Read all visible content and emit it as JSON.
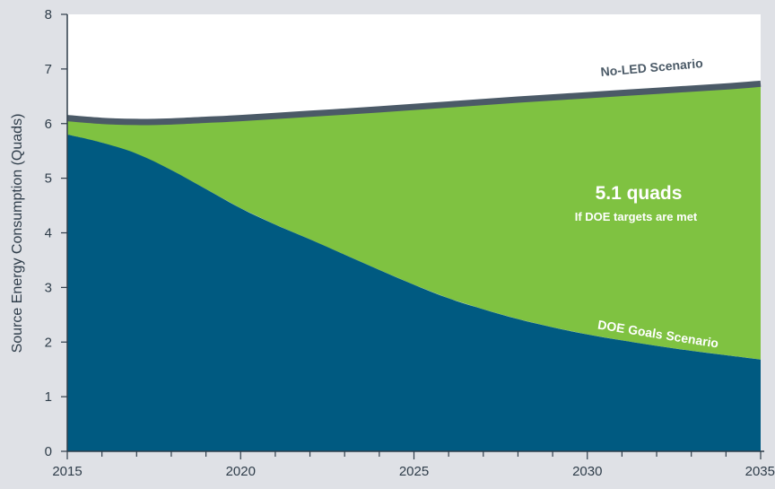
{
  "chart_data": {
    "type": "area",
    "ylabel": "Source Energy Consumption (Quads)",
    "xlabel": "",
    "xlim": [
      2015,
      2035
    ],
    "ylim": [
      0,
      8
    ],
    "x_ticks": [
      "2015",
      "2020",
      "2025",
      "2030",
      "2035"
    ],
    "y_ticks": [
      "0",
      "1",
      "2",
      "3",
      "4",
      "5",
      "6",
      "7",
      "8"
    ],
    "grid": false,
    "series": [
      {
        "name": "No-LED Scenario",
        "color": "#4b5a67",
        "points": [
          [
            2015,
            6.1
          ],
          [
            2016,
            6.05
          ],
          [
            2017,
            6.03
          ],
          [
            2018,
            6.04
          ],
          [
            2019,
            6.07
          ],
          [
            2020,
            6.1
          ],
          [
            2022,
            6.18
          ],
          [
            2024,
            6.26
          ],
          [
            2026,
            6.35
          ],
          [
            2028,
            6.44
          ],
          [
            2030,
            6.52
          ],
          [
            2032,
            6.6
          ],
          [
            2034,
            6.68
          ],
          [
            2035,
            6.73
          ]
        ]
      },
      {
        "name": "DOE Goals Scenario",
        "color": "#005a81",
        "points": [
          [
            2015,
            5.8
          ],
          [
            2016,
            5.65
          ],
          [
            2017,
            5.45
          ],
          [
            2018,
            5.15
          ],
          [
            2019,
            4.8
          ],
          [
            2020,
            4.45
          ],
          [
            2021,
            4.15
          ],
          [
            2022,
            3.88
          ],
          [
            2023,
            3.6
          ],
          [
            2024,
            3.32
          ],
          [
            2025,
            3.05
          ],
          [
            2026,
            2.8
          ],
          [
            2027,
            2.6
          ],
          [
            2028,
            2.42
          ],
          [
            2029,
            2.27
          ],
          [
            2030,
            2.14
          ],
          [
            2031,
            2.03
          ],
          [
            2032,
            1.93
          ],
          [
            2033,
            1.84
          ],
          [
            2034,
            1.76
          ],
          [
            2035,
            1.68
          ]
        ]
      }
    ],
    "savings_fill_color": "#7fc241",
    "annotation": {
      "value": "5.1 quads",
      "note": "If DOE targets are met"
    }
  }
}
